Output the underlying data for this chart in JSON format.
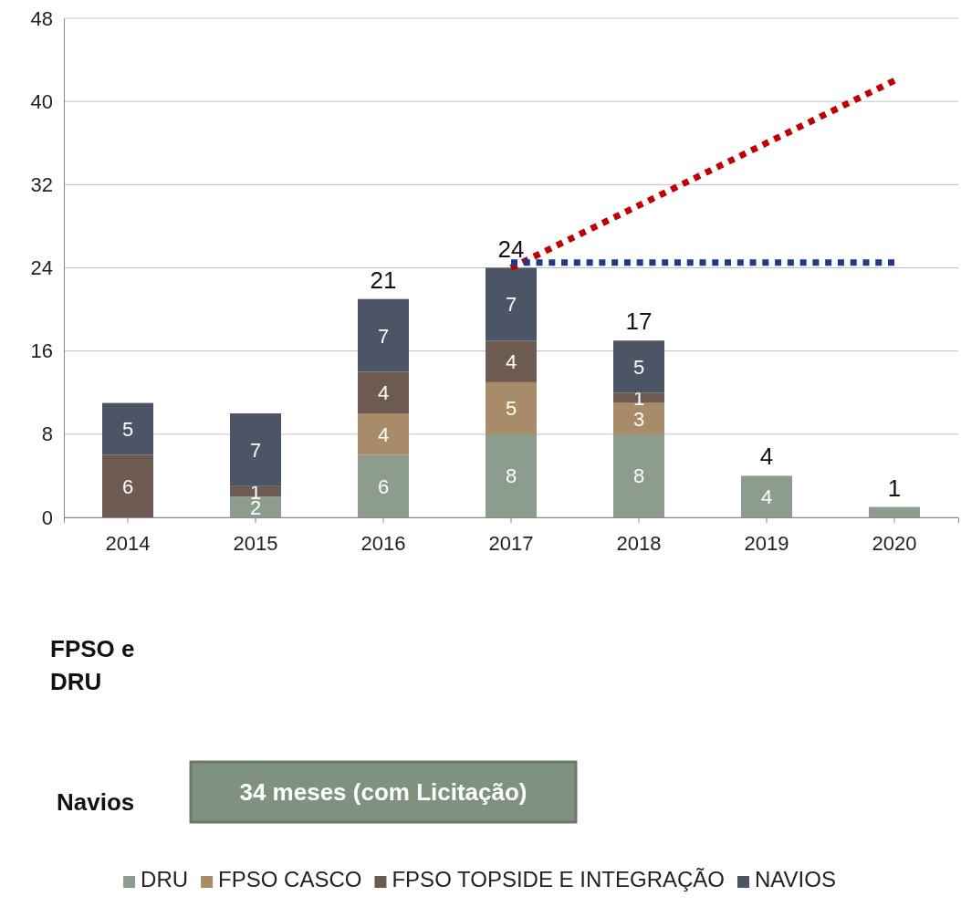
{
  "chart_data": {
    "type": "bar",
    "stacked": true,
    "categories": [
      "2014",
      "2015",
      "2016",
      "2017",
      "2018",
      "2019",
      "2020"
    ],
    "series": [
      {
        "name": "DRU",
        "color": "#8c9c8d",
        "values": [
          null,
          2,
          6,
          8,
          8,
          4,
          1
        ],
        "value_labels": [
          null,
          "2",
          "6",
          "8",
          "8",
          "4",
          null
        ]
      },
      {
        "name": "FPSO CASCO",
        "color": "#a88b68",
        "values": [
          null,
          null,
          4,
          5,
          3,
          null,
          null
        ],
        "value_labels": [
          null,
          null,
          "4",
          "5",
          "3",
          null,
          null
        ]
      },
      {
        "name": "FPSO TOPSIDE E INTEGRAÇÃO",
        "color": "#6d5a51",
        "values": [
          6,
          1,
          4,
          4,
          1,
          null,
          null
        ],
        "value_labels": [
          "6",
          "1",
          "4",
          "4",
          "1",
          null,
          null
        ]
      },
      {
        "name": "NAVIOS",
        "color": "#4b5566",
        "values": [
          5,
          7,
          7,
          7,
          5,
          null,
          null
        ],
        "value_labels": [
          "5",
          "7",
          "7",
          "7",
          "5",
          null,
          null
        ]
      },
      {
        "type": "line",
        "values": [
          null,
          null,
          null,
          24,
          null,
          null,
          42
        ],
        "color": "#c00000",
        "line_style": "dotted"
      },
      {
        "type": "line",
        "values": [
          null,
          null,
          null,
          24.5,
          null,
          null,
          24.5
        ],
        "color": "#1f3a8a",
        "line_style": "dotted"
      }
    ],
    "totals": [
      null,
      null,
      "21",
      "24",
      "17",
      "4",
      "1"
    ],
    "ylim": [
      0,
      48
    ],
    "yticks": [
      0,
      8,
      16,
      24,
      32,
      40,
      48
    ],
    "grid": "y",
    "legend": "bottom",
    "annotations": [
      "FPSO e DRU",
      "Navios",
      "34 meses (com Licitação)"
    ]
  }
}
